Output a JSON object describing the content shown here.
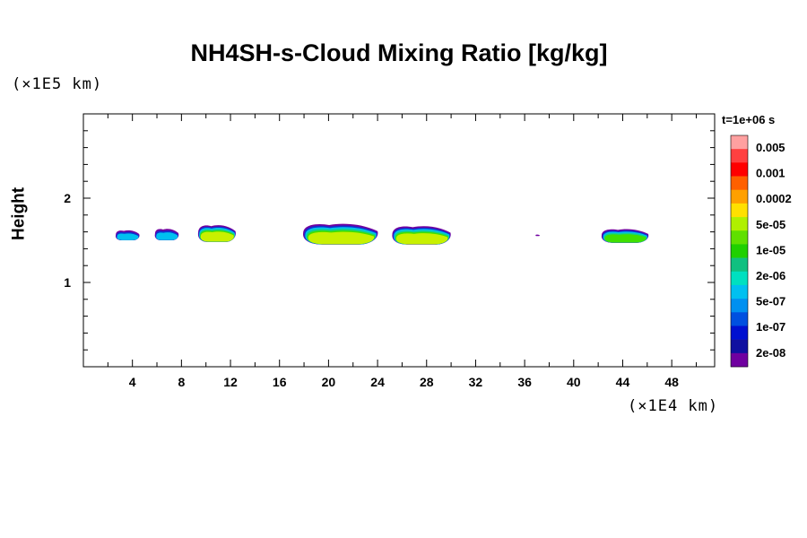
{
  "chart_data": {
    "type": "heatmap",
    "title": "NH4SH-s-Cloud Mixing Ratio [kg/kg]",
    "ylabel": "Height",
    "x_unit": "(×1E4 km)",
    "y_unit": "(×1E5 km)",
    "time_label": "t=1e+06 s",
    "xlim": [
      0,
      51.5
    ],
    "ylim": [
      0,
      3.0
    ],
    "x_ticks": [
      4,
      8,
      12,
      16,
      20,
      24,
      28,
      32,
      36,
      40,
      44,
      48
    ],
    "y_ticks": [
      1,
      2
    ],
    "colorbar": {
      "labels": [
        "0.005",
        "0.001",
        "0.0002",
        "5e-05",
        "1e-05",
        "2e-06",
        "5e-07",
        "1e-07",
        "2e-08"
      ],
      "colors": [
        "#ffa0a0",
        "#ff4040",
        "#ff0000",
        "#ff6000",
        "#ffa000",
        "#ffe000",
        "#b0f000",
        "#60e000",
        "#20d000",
        "#10c080",
        "#00e0c0",
        "#00c0f0",
        "#0090f0",
        "#0050e0",
        "#0010d0",
        "#1010a0",
        "#7000a0"
      ]
    },
    "clouds": [
      {
        "x_range": [
          2.6,
          4.6
        ],
        "y_range": [
          1.5,
          1.63
        ],
        "peak": "5e-07"
      },
      {
        "x_range": [
          5.8,
          7.8
        ],
        "y_range": [
          1.5,
          1.65
        ],
        "peak": "5e-07"
      },
      {
        "x_range": [
          9.3,
          12.5
        ],
        "y_range": [
          1.48,
          1.7
        ],
        "peak": "5e-05"
      },
      {
        "x_range": [
          17.8,
          24.2
        ],
        "y_range": [
          1.45,
          1.72
        ],
        "peak": "5e-05"
      },
      {
        "x_range": [
          25.1,
          30.1
        ],
        "y_range": [
          1.45,
          1.69
        ],
        "peak": "5e-05"
      },
      {
        "x_range": [
          36.9,
          37.2
        ],
        "y_range": [
          1.55,
          1.57
        ],
        "peak": "2e-08"
      },
      {
        "x_range": [
          42.2,
          46.2
        ],
        "y_range": [
          1.47,
          1.65
        ],
        "peak": "1e-05"
      }
    ]
  }
}
